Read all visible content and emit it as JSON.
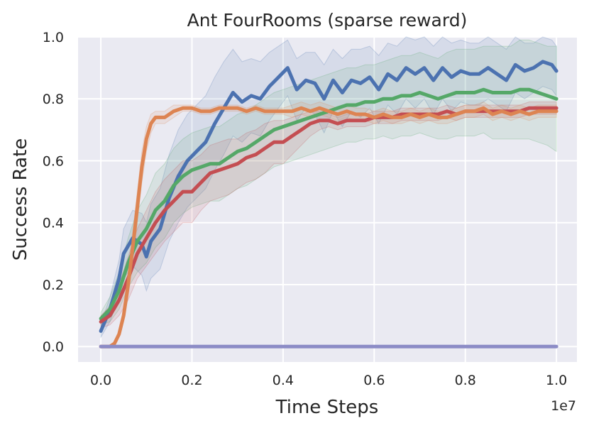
{
  "chart_data": {
    "type": "line",
    "title": "Ant FourRooms (sparse reward)",
    "xlabel": "Time Steps",
    "ylabel": "Success Rate",
    "x_offset_label": "1e7",
    "xlim": [
      -0.05,
      1.045
    ],
    "ylim": [
      -0.05,
      1.0
    ],
    "x_ticks": [
      0.0,
      0.2,
      0.4,
      0.6,
      0.8,
      1.0
    ],
    "x_tick_labels": [
      "0.0",
      "0.2",
      "0.4",
      "0.6",
      "0.8",
      "1.0"
    ],
    "y_ticks": [
      0.0,
      0.2,
      0.4,
      0.6,
      0.8,
      1.0
    ],
    "y_tick_labels": [
      "0.0",
      "0.2",
      "0.4",
      "0.6",
      "0.8",
      "1.0"
    ],
    "grid": true,
    "background_color": "#eaeaf2",
    "series": [
      {
        "color": "#4c72b0",
        "x": [
          0.0,
          0.02,
          0.04,
          0.05,
          0.07,
          0.09,
          0.1,
          0.11,
          0.13,
          0.15,
          0.17,
          0.19,
          0.21,
          0.23,
          0.25,
          0.27,
          0.29,
          0.31,
          0.33,
          0.35,
          0.37,
          0.39,
          0.41,
          0.43,
          0.45,
          0.47,
          0.49,
          0.51,
          0.53,
          0.55,
          0.57,
          0.59,
          0.61,
          0.63,
          0.65,
          0.67,
          0.69,
          0.71,
          0.73,
          0.75,
          0.77,
          0.79,
          0.81,
          0.83,
          0.85,
          0.87,
          0.89,
          0.91,
          0.93,
          0.95,
          0.97,
          0.99,
          1.0
        ],
        "y": [
          0.05,
          0.12,
          0.22,
          0.3,
          0.35,
          0.33,
          0.29,
          0.34,
          0.38,
          0.48,
          0.55,
          0.6,
          0.63,
          0.66,
          0.72,
          0.77,
          0.82,
          0.79,
          0.81,
          0.8,
          0.84,
          0.87,
          0.9,
          0.83,
          0.86,
          0.85,
          0.8,
          0.86,
          0.82,
          0.86,
          0.85,
          0.87,
          0.83,
          0.88,
          0.86,
          0.9,
          0.88,
          0.9,
          0.86,
          0.9,
          0.87,
          0.89,
          0.88,
          0.88,
          0.9,
          0.88,
          0.86,
          0.91,
          0.89,
          0.9,
          0.92,
          0.91,
          0.89
        ],
        "band_width": [
          0.02,
          0.04,
          0.06,
          0.08,
          0.09,
          0.1,
          0.11,
          0.12,
          0.13,
          0.14,
          0.15,
          0.15,
          0.15,
          0.15,
          0.15,
          0.15,
          0.14,
          0.13,
          0.12,
          0.12,
          0.11,
          0.1,
          0.09,
          0.1,
          0.09,
          0.1,
          0.11,
          0.1,
          0.11,
          0.1,
          0.11,
          0.1,
          0.11,
          0.1,
          0.11,
          0.1,
          0.11,
          0.1,
          0.11,
          0.1,
          0.11,
          0.1,
          0.1,
          0.1,
          0.1,
          0.1,
          0.1,
          0.09,
          0.09,
          0.08,
          0.08,
          0.08,
          0.08
        ]
      },
      {
        "color": "#55a868",
        "x": [
          0.0,
          0.02,
          0.04,
          0.06,
          0.08,
          0.1,
          0.12,
          0.14,
          0.16,
          0.18,
          0.2,
          0.22,
          0.24,
          0.26,
          0.28,
          0.3,
          0.32,
          0.34,
          0.36,
          0.38,
          0.4,
          0.42,
          0.44,
          0.46,
          0.48,
          0.5,
          0.52,
          0.54,
          0.56,
          0.58,
          0.6,
          0.62,
          0.64,
          0.66,
          0.68,
          0.7,
          0.72,
          0.74,
          0.76,
          0.78,
          0.8,
          0.82,
          0.84,
          0.86,
          0.88,
          0.9,
          0.92,
          0.94,
          0.96,
          0.98,
          1.0
        ],
        "y": [
          0.09,
          0.12,
          0.18,
          0.27,
          0.34,
          0.38,
          0.44,
          0.47,
          0.52,
          0.55,
          0.57,
          0.58,
          0.59,
          0.59,
          0.61,
          0.63,
          0.64,
          0.66,
          0.68,
          0.7,
          0.71,
          0.72,
          0.73,
          0.74,
          0.75,
          0.76,
          0.77,
          0.78,
          0.78,
          0.79,
          0.79,
          0.8,
          0.8,
          0.81,
          0.81,
          0.82,
          0.81,
          0.8,
          0.81,
          0.82,
          0.82,
          0.82,
          0.83,
          0.82,
          0.82,
          0.82,
          0.83,
          0.83,
          0.82,
          0.81,
          0.8
        ],
        "band_width": [
          0.02,
          0.04,
          0.06,
          0.08,
          0.1,
          0.11,
          0.12,
          0.12,
          0.12,
          0.12,
          0.12,
          0.12,
          0.12,
          0.12,
          0.12,
          0.12,
          0.12,
          0.12,
          0.12,
          0.12,
          0.12,
          0.12,
          0.12,
          0.12,
          0.12,
          0.12,
          0.12,
          0.12,
          0.12,
          0.12,
          0.12,
          0.12,
          0.13,
          0.13,
          0.13,
          0.13,
          0.13,
          0.13,
          0.14,
          0.14,
          0.14,
          0.14,
          0.14,
          0.15,
          0.15,
          0.15,
          0.16,
          0.16,
          0.16,
          0.16,
          0.17
        ]
      },
      {
        "color": "#c44e52",
        "x": [
          0.0,
          0.02,
          0.04,
          0.06,
          0.08,
          0.1,
          0.12,
          0.14,
          0.16,
          0.18,
          0.2,
          0.22,
          0.24,
          0.26,
          0.28,
          0.3,
          0.32,
          0.34,
          0.36,
          0.38,
          0.4,
          0.42,
          0.44,
          0.46,
          0.48,
          0.5,
          0.52,
          0.54,
          0.56,
          0.58,
          0.6,
          0.62,
          0.64,
          0.66,
          0.68,
          0.7,
          0.72,
          0.74,
          0.76,
          0.78,
          0.8,
          0.82,
          0.84,
          0.86,
          0.88,
          0.9,
          0.92,
          0.94,
          0.96,
          0.98,
          1.0
        ],
        "y": [
          0.08,
          0.1,
          0.15,
          0.22,
          0.3,
          0.35,
          0.4,
          0.44,
          0.47,
          0.5,
          0.5,
          0.53,
          0.56,
          0.57,
          0.58,
          0.59,
          0.61,
          0.62,
          0.64,
          0.66,
          0.66,
          0.68,
          0.7,
          0.72,
          0.73,
          0.73,
          0.72,
          0.73,
          0.73,
          0.73,
          0.74,
          0.74,
          0.74,
          0.75,
          0.75,
          0.75,
          0.75,
          0.75,
          0.76,
          0.75,
          0.76,
          0.76,
          0.76,
          0.76,
          0.76,
          0.76,
          0.76,
          0.77,
          0.77,
          0.77,
          0.77
        ],
        "band_width": [
          0.02,
          0.03,
          0.05,
          0.07,
          0.08,
          0.09,
          0.1,
          0.1,
          0.1,
          0.1,
          0.1,
          0.09,
          0.09,
          0.09,
          0.09,
          0.08,
          0.08,
          0.08,
          0.08,
          0.07,
          0.07,
          0.06,
          0.05,
          0.04,
          0.03,
          0.02,
          0.02,
          0.02,
          0.02,
          0.02,
          0.02,
          0.02,
          0.02,
          0.02,
          0.02,
          0.02,
          0.02,
          0.02,
          0.02,
          0.02,
          0.02,
          0.02,
          0.02,
          0.02,
          0.02,
          0.02,
          0.02,
          0.02,
          0.02,
          0.02,
          0.02
        ]
      },
      {
        "color": "#dd8452",
        "x": [
          0.0,
          0.02,
          0.03,
          0.04,
          0.05,
          0.06,
          0.07,
          0.08,
          0.09,
          0.1,
          0.11,
          0.12,
          0.14,
          0.16,
          0.18,
          0.2,
          0.22,
          0.24,
          0.26,
          0.28,
          0.3,
          0.32,
          0.34,
          0.36,
          0.38,
          0.4,
          0.42,
          0.44,
          0.46,
          0.48,
          0.5,
          0.52,
          0.54,
          0.56,
          0.58,
          0.6,
          0.62,
          0.64,
          0.66,
          0.68,
          0.7,
          0.72,
          0.74,
          0.76,
          0.78,
          0.8,
          0.82,
          0.84,
          0.86,
          0.88,
          0.9,
          0.92,
          0.94,
          0.96,
          0.98,
          1.0
        ],
        "y": [
          0.0,
          0.0,
          0.01,
          0.04,
          0.1,
          0.2,
          0.32,
          0.45,
          0.58,
          0.67,
          0.72,
          0.74,
          0.74,
          0.76,
          0.77,
          0.77,
          0.76,
          0.76,
          0.77,
          0.77,
          0.77,
          0.76,
          0.77,
          0.76,
          0.76,
          0.76,
          0.76,
          0.77,
          0.76,
          0.77,
          0.76,
          0.75,
          0.76,
          0.75,
          0.75,
          0.74,
          0.75,
          0.74,
          0.74,
          0.75,
          0.74,
          0.75,
          0.74,
          0.74,
          0.75,
          0.76,
          0.76,
          0.77,
          0.75,
          0.76,
          0.75,
          0.76,
          0.75,
          0.76,
          0.76,
          0.76
        ],
        "band_width": [
          0.0,
          0.0,
          0.0,
          0.01,
          0.02,
          0.04,
          0.05,
          0.05,
          0.05,
          0.04,
          0.03,
          0.02,
          0.02,
          0.02,
          0.01,
          0.01,
          0.01,
          0.01,
          0.01,
          0.01,
          0.01,
          0.01,
          0.01,
          0.01,
          0.01,
          0.01,
          0.02,
          0.02,
          0.02,
          0.02,
          0.02,
          0.02,
          0.02,
          0.02,
          0.02,
          0.02,
          0.02,
          0.02,
          0.02,
          0.02,
          0.02,
          0.02,
          0.02,
          0.02,
          0.02,
          0.02,
          0.02,
          0.02,
          0.02,
          0.02,
          0.02,
          0.02,
          0.02,
          0.02,
          0.02,
          0.02
        ]
      },
      {
        "color": "#8c8cc6",
        "x": [
          0.0,
          1.0
        ],
        "y": [
          0.0,
          0.0
        ],
        "band_width": [
          0.0,
          0.0
        ]
      }
    ]
  }
}
